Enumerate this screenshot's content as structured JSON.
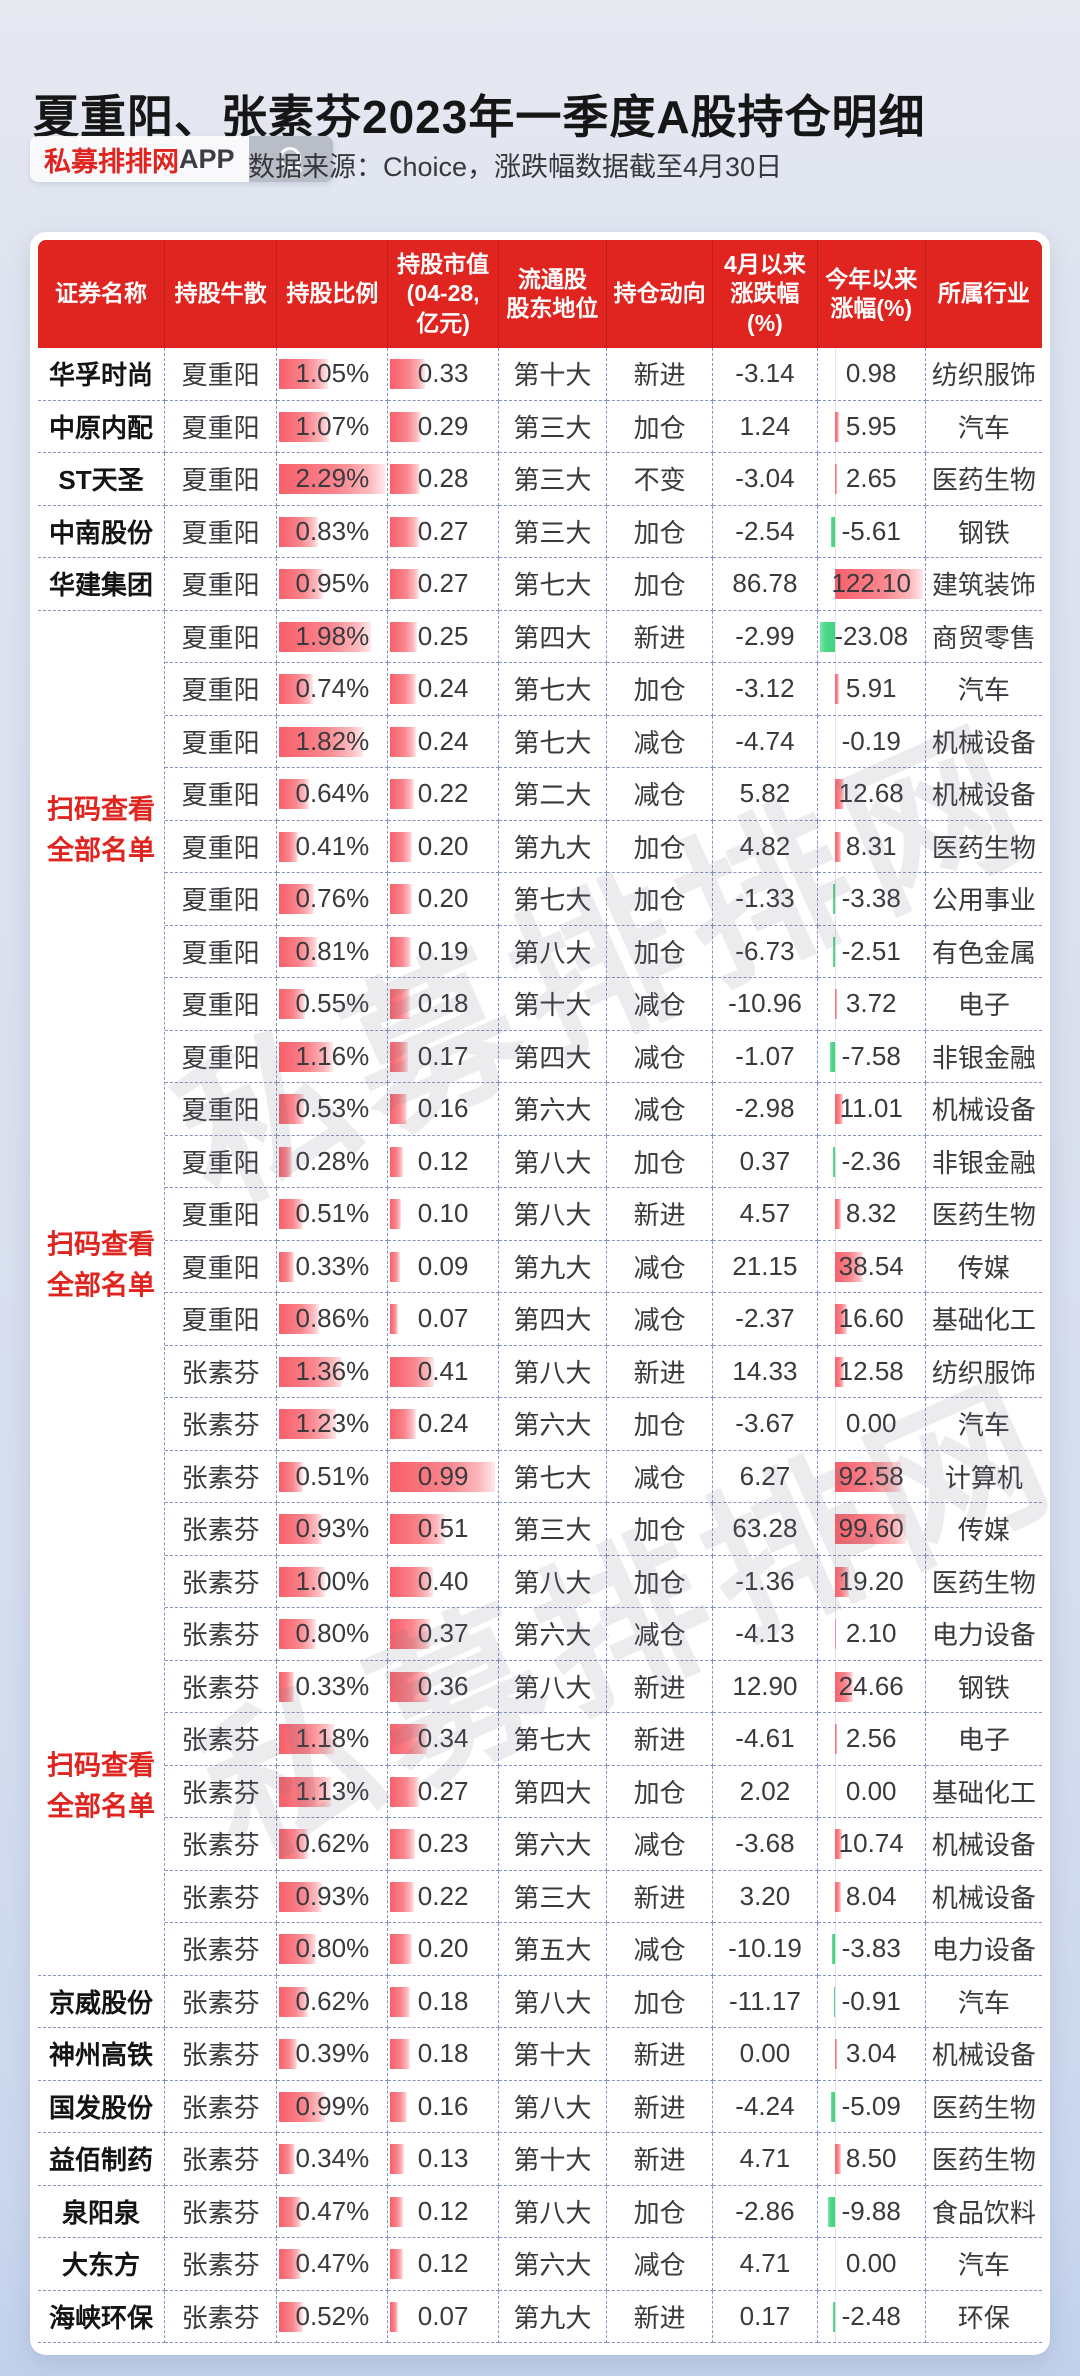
{
  "page": {
    "title": "夏重阳、张素芬2023年一季度A股持仓明细",
    "badge": {
      "brand": "私募排排网",
      "app": "APP"
    },
    "source_note": "数据来源：Choice，涨跌幅数据截至4月30日",
    "watermark": "私募排排网",
    "colors": {
      "accent_red": "#e0241f",
      "bar_red": "#f8606a",
      "bar_green": "#3bd47f",
      "grid_line": "#8694bf"
    }
  },
  "chart_data": {
    "type": "table",
    "title": "夏重阳、张素芬2023年一季度A股持仓明细",
    "columns": [
      "证券名称",
      "持股牛散",
      "持股比例",
      "持股市值\n(04-28,\n亿元)",
      "流通股\n股东地位",
      "持仓动向",
      "4月以来\n涨跌幅\n(%)",
      "今年以来\n涨幅(%)",
      "所属行业"
    ],
    "scan_note_lines": [
      "扫码查看",
      "全部名单"
    ],
    "bar_scales": {
      "ratio_max": 2.29,
      "mkt_max": 0.99,
      "ytd_max": 122.1,
      "ytd_min": -23.08,
      "ytd_axis_pct": 16
    },
    "rows": [
      [
        "华孚时尚",
        "夏重阳",
        "1.05%",
        "0.33",
        "第十大",
        "新进",
        "-3.14",
        "0.98",
        "纺织服饰"
      ],
      [
        "中原内配",
        "夏重阳",
        "1.07%",
        "0.29",
        "第三大",
        "加仓",
        "1.24",
        "5.95",
        "汽车"
      ],
      [
        "ST天圣",
        "夏重阳",
        "2.29%",
        "0.28",
        "第三大",
        "不变",
        "-3.04",
        "2.65",
        "医药生物"
      ],
      [
        "中南股份",
        "夏重阳",
        "0.83%",
        "0.27",
        "第三大",
        "加仓",
        "-2.54",
        "-5.61",
        "钢铁"
      ],
      [
        "华建集团",
        "夏重阳",
        "0.95%",
        "0.27",
        "第七大",
        "加仓",
        "86.78",
        "122.10",
        "建筑装饰"
      ],
      [
        "",
        "夏重阳",
        "1.98%",
        "0.25",
        "第四大",
        "新进",
        "-2.99",
        "-23.08",
        "商贸零售"
      ],
      [
        "",
        "夏重阳",
        "0.74%",
        "0.24",
        "第七大",
        "加仓",
        "-3.12",
        "5.91",
        "汽车"
      ],
      [
        "",
        "夏重阳",
        "1.82%",
        "0.24",
        "第七大",
        "减仓",
        "-4.74",
        "-0.19",
        "机械设备"
      ],
      [
        "",
        "夏重阳",
        "0.64%",
        "0.22",
        "第二大",
        "减仓",
        "5.82",
        "12.68",
        "机械设备"
      ],
      [
        "",
        "夏重阳",
        "0.41%",
        "0.20",
        "第九大",
        "加仓",
        "4.82",
        "8.31",
        "医药生物"
      ],
      [
        "",
        "夏重阳",
        "0.76%",
        "0.20",
        "第七大",
        "加仓",
        "-1.33",
        "-3.38",
        "公用事业"
      ],
      [
        "",
        "夏重阳",
        "0.81%",
        "0.19",
        "第八大",
        "加仓",
        "-6.73",
        "-2.51",
        "有色金属"
      ],
      [
        "",
        "夏重阳",
        "0.55%",
        "0.18",
        "第十大",
        "减仓",
        "-10.96",
        "3.72",
        "电子"
      ],
      [
        "",
        "夏重阳",
        "1.16%",
        "0.17",
        "第四大",
        "减仓",
        "-1.07",
        "-7.58",
        "非银金融"
      ],
      [
        "",
        "夏重阳",
        "0.53%",
        "0.16",
        "第六大",
        "减仓",
        "-2.98",
        "11.01",
        "机械设备"
      ],
      [
        "",
        "夏重阳",
        "0.28%",
        "0.12",
        "第八大",
        "加仓",
        "0.37",
        "-2.36",
        "非银金融"
      ],
      [
        "",
        "夏重阳",
        "0.51%",
        "0.10",
        "第八大",
        "新进",
        "4.57",
        "8.32",
        "医药生物"
      ],
      [
        "",
        "夏重阳",
        "0.33%",
        "0.09",
        "第九大",
        "减仓",
        "21.15",
        "38.54",
        "传媒"
      ],
      [
        "",
        "夏重阳",
        "0.86%",
        "0.07",
        "第四大",
        "减仓",
        "-2.37",
        "16.60",
        "基础化工"
      ],
      [
        "",
        "张素芬",
        "1.36%",
        "0.41",
        "第八大",
        "新进",
        "14.33",
        "12.58",
        "纺织服饰"
      ],
      [
        "",
        "张素芬",
        "1.23%",
        "0.24",
        "第六大",
        "加仓",
        "-3.67",
        "0.00",
        "汽车"
      ],
      [
        "",
        "张素芬",
        "0.51%",
        "0.99",
        "第七大",
        "减仓",
        "6.27",
        "92.58",
        "计算机"
      ],
      [
        "",
        "张素芬",
        "0.93%",
        "0.51",
        "第三大",
        "加仓",
        "63.28",
        "99.60",
        "传媒"
      ],
      [
        "",
        "张素芬",
        "1.00%",
        "0.40",
        "第八大",
        "加仓",
        "-1.36",
        "19.20",
        "医药生物"
      ],
      [
        "",
        "张素芬",
        "0.80%",
        "0.37",
        "第六大",
        "减仓",
        "-4.13",
        "2.10",
        "电力设备"
      ],
      [
        "",
        "张素芬",
        "0.33%",
        "0.36",
        "第八大",
        "新进",
        "12.90",
        "24.66",
        "钢铁"
      ],
      [
        "",
        "张素芬",
        "1.18%",
        "0.34",
        "第七大",
        "新进",
        "-4.61",
        "2.56",
        "电子"
      ],
      [
        "",
        "张素芬",
        "1.13%",
        "0.27",
        "第四大",
        "加仓",
        "2.02",
        "0.00",
        "基础化工"
      ],
      [
        "",
        "张素芬",
        "0.62%",
        "0.23",
        "第六大",
        "减仓",
        "-3.68",
        "10.74",
        "机械设备"
      ],
      [
        "",
        "张素芬",
        "0.93%",
        "0.22",
        "第三大",
        "新进",
        "3.20",
        "8.04",
        "机械设备"
      ],
      [
        "",
        "张素芬",
        "0.80%",
        "0.20",
        "第五大",
        "减仓",
        "-10.19",
        "-3.83",
        "电力设备"
      ],
      [
        "京威股份",
        "张素芬",
        "0.62%",
        "0.18",
        "第八大",
        "加仓",
        "-11.17",
        "-0.91",
        "汽车"
      ],
      [
        "神州高铁",
        "张素芬",
        "0.39%",
        "0.18",
        "第十大",
        "新进",
        "0.00",
        "3.04",
        "机械设备"
      ],
      [
        "国发股份",
        "张素芬",
        "0.99%",
        "0.16",
        "第八大",
        "新进",
        "-4.24",
        "-5.09",
        "医药生物"
      ],
      [
        "益佰制药",
        "张素芬",
        "0.34%",
        "0.13",
        "第十大",
        "新进",
        "4.71",
        "8.50",
        "医药生物"
      ],
      [
        "泉阳泉",
        "张素芬",
        "0.47%",
        "0.12",
        "第八大",
        "加仓",
        "-2.86",
        "-9.88",
        "食品饮料"
      ],
      [
        "大东方",
        "张素芬",
        "0.47%",
        "0.12",
        "第六大",
        "减仓",
        "4.71",
        "0.00",
        "汽车"
      ],
      [
        "海峡环保",
        "张素芬",
        "0.52%",
        "0.07",
        "第九大",
        "新进",
        "0.17",
        "-2.48",
        "环保"
      ]
    ]
  }
}
